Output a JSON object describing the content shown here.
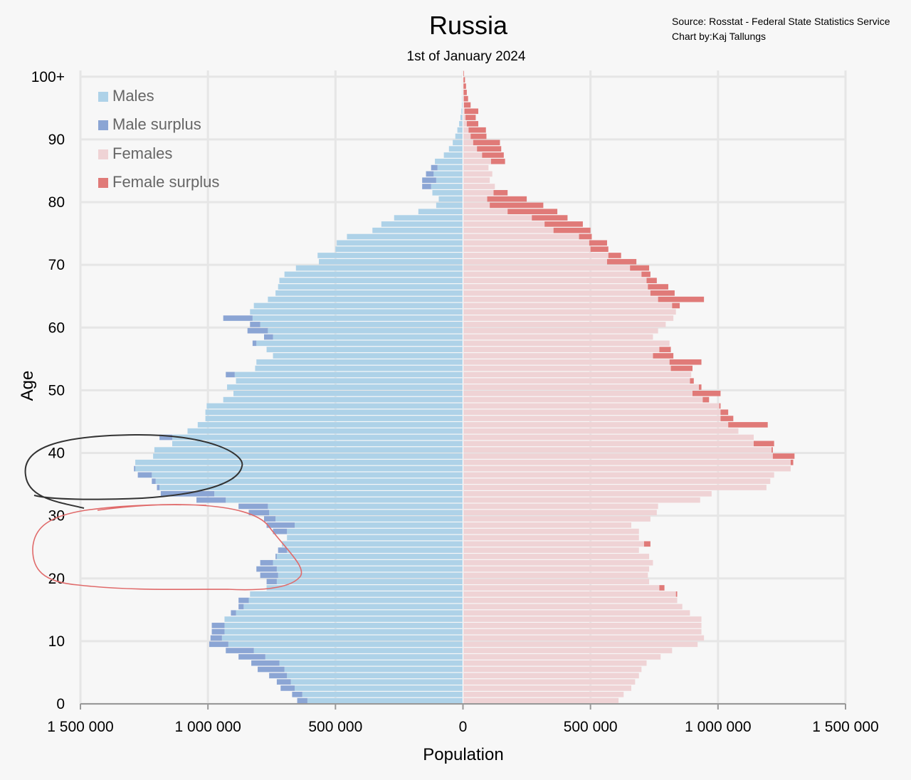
{
  "chart_data": {
    "type": "bar",
    "orientation": "horizontal",
    "title": "Russia",
    "subtitle": "1st of January 2024",
    "source_line": "Source: Rosstat - Federal State Statistics Service",
    "author_line": "Chart by:Kaj Tallungs",
    "xlabel": "Population",
    "ylabel": "Age",
    "xlim": [
      -1500000,
      1500000
    ],
    "ylim": [
      0,
      100
    ],
    "x_tick_values": [
      -1500000,
      -1000000,
      -500000,
      0,
      500000,
      1000000,
      1500000
    ],
    "x_tick_labels": [
      "1 500 000",
      "1 000 000",
      "500 000",
      "0",
      "500 000",
      "1 000 000",
      "1 500 000"
    ],
    "y_tick_values": [
      0,
      10,
      20,
      30,
      40,
      50,
      60,
      70,
      80,
      90,
      100
    ],
    "y_tick_labels": [
      "0",
      "10",
      "20",
      "30",
      "40",
      "50",
      "60",
      "70",
      "80",
      "90",
      "100+"
    ],
    "grid": true,
    "legend_position": "top-left",
    "legend": [
      {
        "name": "Males",
        "color": "#aed2e8"
      },
      {
        "name": "Male surplus",
        "color": "#8ba5d4"
      },
      {
        "name": "Females",
        "color": "#efd3d5"
      },
      {
        "name": "Female surplus",
        "color": "#e07a78"
      }
    ],
    "ages": [
      0,
      1,
      2,
      3,
      4,
      5,
      6,
      7,
      8,
      9,
      10,
      11,
      12,
      13,
      14,
      15,
      16,
      17,
      18,
      19,
      20,
      21,
      22,
      23,
      24,
      25,
      26,
      27,
      28,
      29,
      30,
      31,
      32,
      33,
      34,
      35,
      36,
      37,
      38,
      39,
      40,
      41,
      42,
      43,
      44,
      45,
      46,
      47,
      48,
      49,
      50,
      51,
      52,
      53,
      54,
      55,
      56,
      57,
      58,
      59,
      60,
      61,
      62,
      63,
      64,
      65,
      66,
      67,
      68,
      69,
      70,
      71,
      72,
      73,
      74,
      75,
      76,
      77,
      78,
      79,
      80,
      81,
      82,
      83,
      84,
      85,
      86,
      87,
      88,
      89,
      90,
      91,
      92,
      93,
      94,
      95,
      96,
      97,
      98,
      99,
      100
    ],
    "series": [
      {
        "name": "Males",
        "values": [
          650000,
          670000,
          715000,
          730000,
          760000,
          805000,
          830000,
          880000,
          930000,
          995000,
          990000,
          985000,
          985000,
          935000,
          910000,
          880000,
          880000,
          835000,
          770000,
          770000,
          795000,
          810000,
          795000,
          735000,
          725000,
          710000,
          690000,
          745000,
          770000,
          780000,
          840000,
          880000,
          1045000,
          1185000,
          1200000,
          1220000,
          1275000,
          1290000,
          1285000,
          1215000,
          1210000,
          1140000,
          1190000,
          1080000,
          1040000,
          1010000,
          1010000,
          1005000,
          940000,
          900000,
          925000,
          890000,
          930000,
          815000,
          810000,
          745000,
          770000,
          825000,
          780000,
          845000,
          835000,
          940000,
          835000,
          820000,
          765000,
          735000,
          725000,
          720000,
          700000,
          655000,
          565000,
          570000,
          500000,
          495000,
          455000,
          355000,
          320000,
          270000,
          175000,
          105000,
          95000,
          120000,
          160000,
          160000,
          145000,
          125000,
          110000,
          75000,
          55000,
          40000,
          30000,
          22000,
          15000,
          10000,
          6000,
          4000,
          3000,
          2000,
          1000,
          800,
          500
        ]
      },
      {
        "name": "Females",
        "values": [
          610000,
          630000,
          660000,
          675000,
          690000,
          700000,
          720000,
          775000,
          820000,
          920000,
          945000,
          935000,
          935000,
          935000,
          890000,
          860000,
          840000,
          840000,
          790000,
          730000,
          725000,
          730000,
          745000,
          730000,
          690000,
          735000,
          690000,
          690000,
          660000,
          735000,
          760000,
          765000,
          930000,
          975000,
          1190000,
          1205000,
          1220000,
          1285000,
          1295000,
          1300000,
          1215000,
          1220000,
          1140000,
          1080000,
          1195000,
          1060000,
          1040000,
          1010000,
          965000,
          1010000,
          935000,
          905000,
          895000,
          900000,
          935000,
          825000,
          815000,
          810000,
          745000,
          765000,
          795000,
          825000,
          835000,
          850000,
          945000,
          830000,
          805000,
          760000,
          735000,
          730000,
          680000,
          620000,
          570000,
          565000,
          505000,
          500000,
          470000,
          410000,
          370000,
          315000,
          250000,
          175000,
          125000,
          105000,
          115000,
          100000,
          165000,
          160000,
          150000,
          145000,
          92000,
          90000,
          60000,
          50000,
          60000,
          30000,
          20000,
          15000,
          12000,
          8000,
          4000
        ]
      }
    ]
  }
}
